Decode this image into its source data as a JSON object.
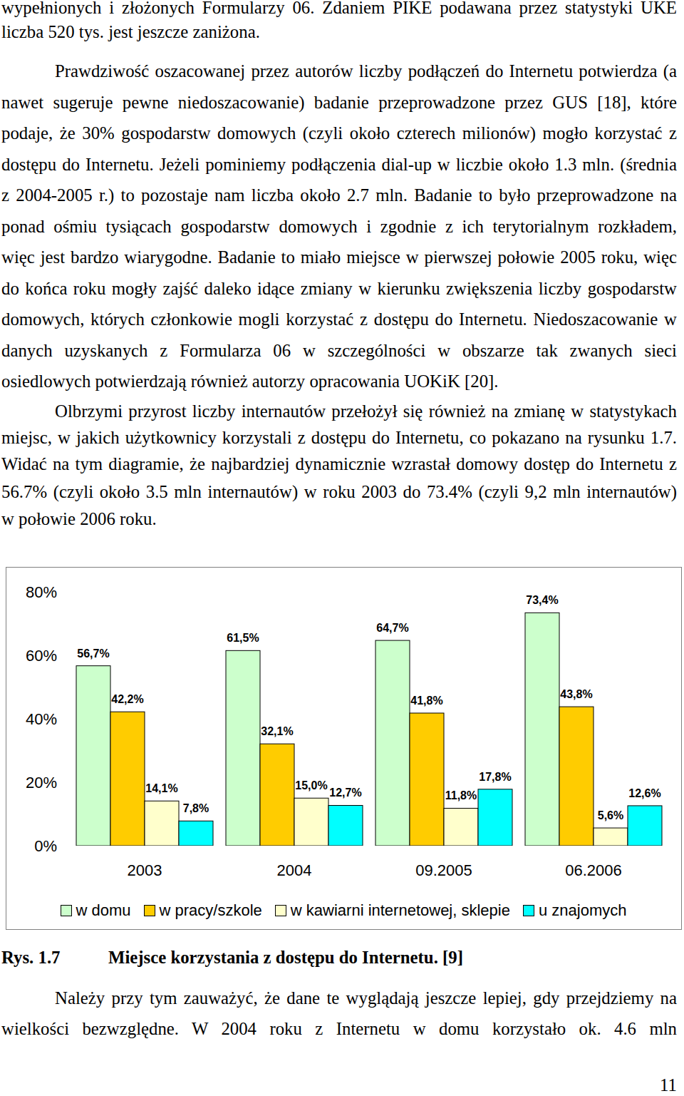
{
  "text_top": [
    {
      "lines": [
        "wypełnionych i złożonych Formularzy 06. Zdaniem PIKE podawana przez statystyki UKE",
        "liczba 520 tys. jest jeszcze zaniżona."
      ]
    },
    {
      "lines": [
        "Prawdziwość oszacowanej przez autorów liczby podłączeń do Internetu potwierdza (a",
        "nawet sugeruje pewne niedoszacowanie) badanie przeprowadzone przez GUS [18], które",
        "podaje, że 30% gospodarstw domowych (czyli około czterech milionów) mogło korzystać z",
        "dostępu do Internetu. Jeżeli pominiemy podłączenia dial-up w liczbie około 1.3 mln. (średnia",
        "z 2004-2005 r.) to pozostaje nam liczba około 2.7 mln. Badanie to było przeprowadzone na",
        "ponad ośmiu tysiącach gospodarstw domowych i zgodnie z ich terytorialnym rozkładem,",
        "więc jest bardzo wiarygodne. Badanie to miało miejsce w pierwszej połowie 2005 roku, więc",
        "do końca roku mogły zajść daleko idące zmiany w kierunku zwiększenia liczby gospodarstw",
        "domowych, których członkowie mogli korzystać z dostępu do Internetu. Niedoszacowanie w",
        "danych uzyskanych z Formularza 06 w szczególności w obszarze tak zwanych sieci",
        "osiedlowych potwierdzają również autorzy opracowania UOKiK [20]."
      ]
    },
    {
      "lines": [
        "Olbrzymi przyrost liczby internautów przełożył się również na zmianę w statystykach",
        "miejsc, w jakich użytkownicy korzystali z dostępu do Internetu, co pokazano na rysunku 1.7.",
        "Widać na tym diagramie, że najbardziej dynamicznie wzrastał domowy dostęp do Internetu z",
        "56.7% (czyli około 3.5 mln internautów) w roku 2003 do 73.4% (czyli 9,2 mln internautów)",
        "w połowie 2006 roku."
      ]
    }
  ],
  "chart_data": {
    "type": "bar",
    "categories": [
      "2003",
      "2004",
      "09.2005",
      "06.2006"
    ],
    "series": [
      {
        "name": "w domu",
        "color": "#ccffcc",
        "values": [
          56.7,
          61.5,
          64.7,
          73.4
        ],
        "value_labels": [
          "56,7%",
          "61,5%",
          "64,7%",
          "73,4%"
        ]
      },
      {
        "name": "w pracy/szkole",
        "color": "#ffcc00",
        "values": [
          42.2,
          32.1,
          41.8,
          43.8
        ],
        "value_labels": [
          "42,2%",
          "32,1%",
          "41,8%",
          "43,8%"
        ]
      },
      {
        "name": "w kawiarni internetowej, sklepie",
        "color": "#ffffcc",
        "values": [
          14.1,
          15.0,
          11.8,
          5.6
        ],
        "value_labels": [
          "14,1%",
          "15,0%",
          "11,8%",
          "5,6%"
        ]
      },
      {
        "name": "u znajomych",
        "color": "#00ffff",
        "values": [
          7.8,
          12.7,
          17.8,
          12.6
        ],
        "value_labels": [
          "7,8%",
          "12,7%",
          "17,8%",
          "12,6%"
        ]
      }
    ],
    "ylim": [
      0,
      80
    ],
    "yticks": [
      {
        "value": 0,
        "label": "0%"
      },
      {
        "value": 20,
        "label": "20%"
      },
      {
        "value": 40,
        "label": "40%"
      },
      {
        "value": 60,
        "label": "60%"
      },
      {
        "value": 80,
        "label": "80%"
      }
    ],
    "grid": false,
    "data_labels": true,
    "legend": "bottom"
  },
  "figure_caption": {
    "label": "Rys. 1.7",
    "text": "Miejsce korzystania z dostępu do Internetu. [9]"
  },
  "text_bottom": [
    {
      "lines": [
        "Należy przy tym zauważyć, że dane te wyglądają jeszcze lepiej, gdy przejdziemy na",
        "wielkości bezwzględne. W 2004 roku z Internetu w domu korzystało ok. 4.6 mln"
      ]
    }
  ],
  "page_number": "11"
}
